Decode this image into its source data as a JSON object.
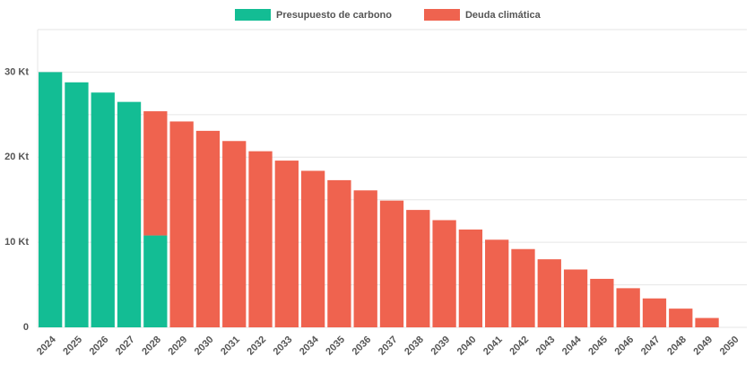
{
  "chart_data": {
    "type": "stacked_bar",
    "categories": [
      "2024",
      "2025",
      "2026",
      "2027",
      "2028",
      "2029",
      "2030",
      "2031",
      "2032",
      "2033",
      "2034",
      "2035",
      "2036",
      "2037",
      "2038",
      "2039",
      "2040",
      "2041",
      "2042",
      "2043",
      "2044",
      "2045",
      "2046",
      "2047",
      "2048",
      "2049",
      "2050"
    ],
    "series": [
      {
        "name": "Presupuesto de carbono",
        "color": "#13bd94",
        "values": [
          30.0,
          28.8,
          27.6,
          26.5,
          10.8,
          null,
          null,
          null,
          null,
          null,
          null,
          null,
          null,
          null,
          null,
          null,
          null,
          null,
          null,
          null,
          null,
          null,
          null,
          null,
          null,
          null,
          null
        ]
      },
      {
        "name": "Deuda climática",
        "color": "#ef634f",
        "values": [
          null,
          null,
          null,
          null,
          14.6,
          24.2,
          23.1,
          21.9,
          20.7,
          19.6,
          18.4,
          17.3,
          16.1,
          14.9,
          13.8,
          12.6,
          11.5,
          10.3,
          9.2,
          8.0,
          6.8,
          5.7,
          4.6,
          3.4,
          2.2,
          1.1,
          0
        ]
      }
    ],
    "ylim": [
      0,
      35
    ],
    "yticks": [
      0,
      {
        "value": 10,
        "label": "10 Kt"
      },
      {
        "value": 20,
        "label": "20 Kt"
      },
      {
        "value": 30,
        "label": "30 Kt"
      }
    ],
    "yminor": [
      5,
      15,
      25,
      35
    ],
    "grid": true,
    "legend": "top"
  }
}
